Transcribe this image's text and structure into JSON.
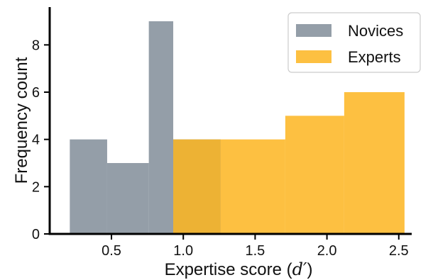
{
  "chart_data": {
    "type": "bar",
    "xlabel": "Expertise score (",
    "xlabel_math": "d′",
    "xlabel_close": ")",
    "ylabel": "Frequency count",
    "xlim": [
      0.07,
      2.59
    ],
    "ylim": [
      0,
      9.6
    ],
    "xticks": [
      0.5,
      1.0,
      1.5,
      2.0,
      2.5
    ],
    "xtick_labels": [
      "0.5",
      "1.0",
      "1.5",
      "2.0",
      "2.5"
    ],
    "yticks": [
      0,
      2,
      4,
      6,
      8
    ],
    "ytick_labels": [
      "0",
      "2",
      "4",
      "6",
      "8"
    ],
    "legend_position": "top-right",
    "series": [
      {
        "name": "Novices",
        "color": "#949ea8",
        "opacity": 1.0,
        "bins": [
          {
            "x0": 0.21,
            "x1": 0.47,
            "count": 4
          },
          {
            "x0": 0.47,
            "x1": 0.76,
            "count": 3
          },
          {
            "x0": 0.76,
            "x1": 0.93,
            "count": 9
          },
          {
            "x0": 0.93,
            "x1": 1.26,
            "count": 4
          }
        ]
      },
      {
        "name": "Experts",
        "color": "#fdb520",
        "opacity": 0.85,
        "bins": [
          {
            "x0": 0.93,
            "x1": 1.26,
            "count": 4
          },
          {
            "x0": 1.26,
            "x1": 1.71,
            "count": 4
          },
          {
            "x0": 1.71,
            "x1": 2.12,
            "count": 5
          },
          {
            "x0": 2.12,
            "x1": 2.54,
            "count": 6
          }
        ]
      }
    ]
  }
}
